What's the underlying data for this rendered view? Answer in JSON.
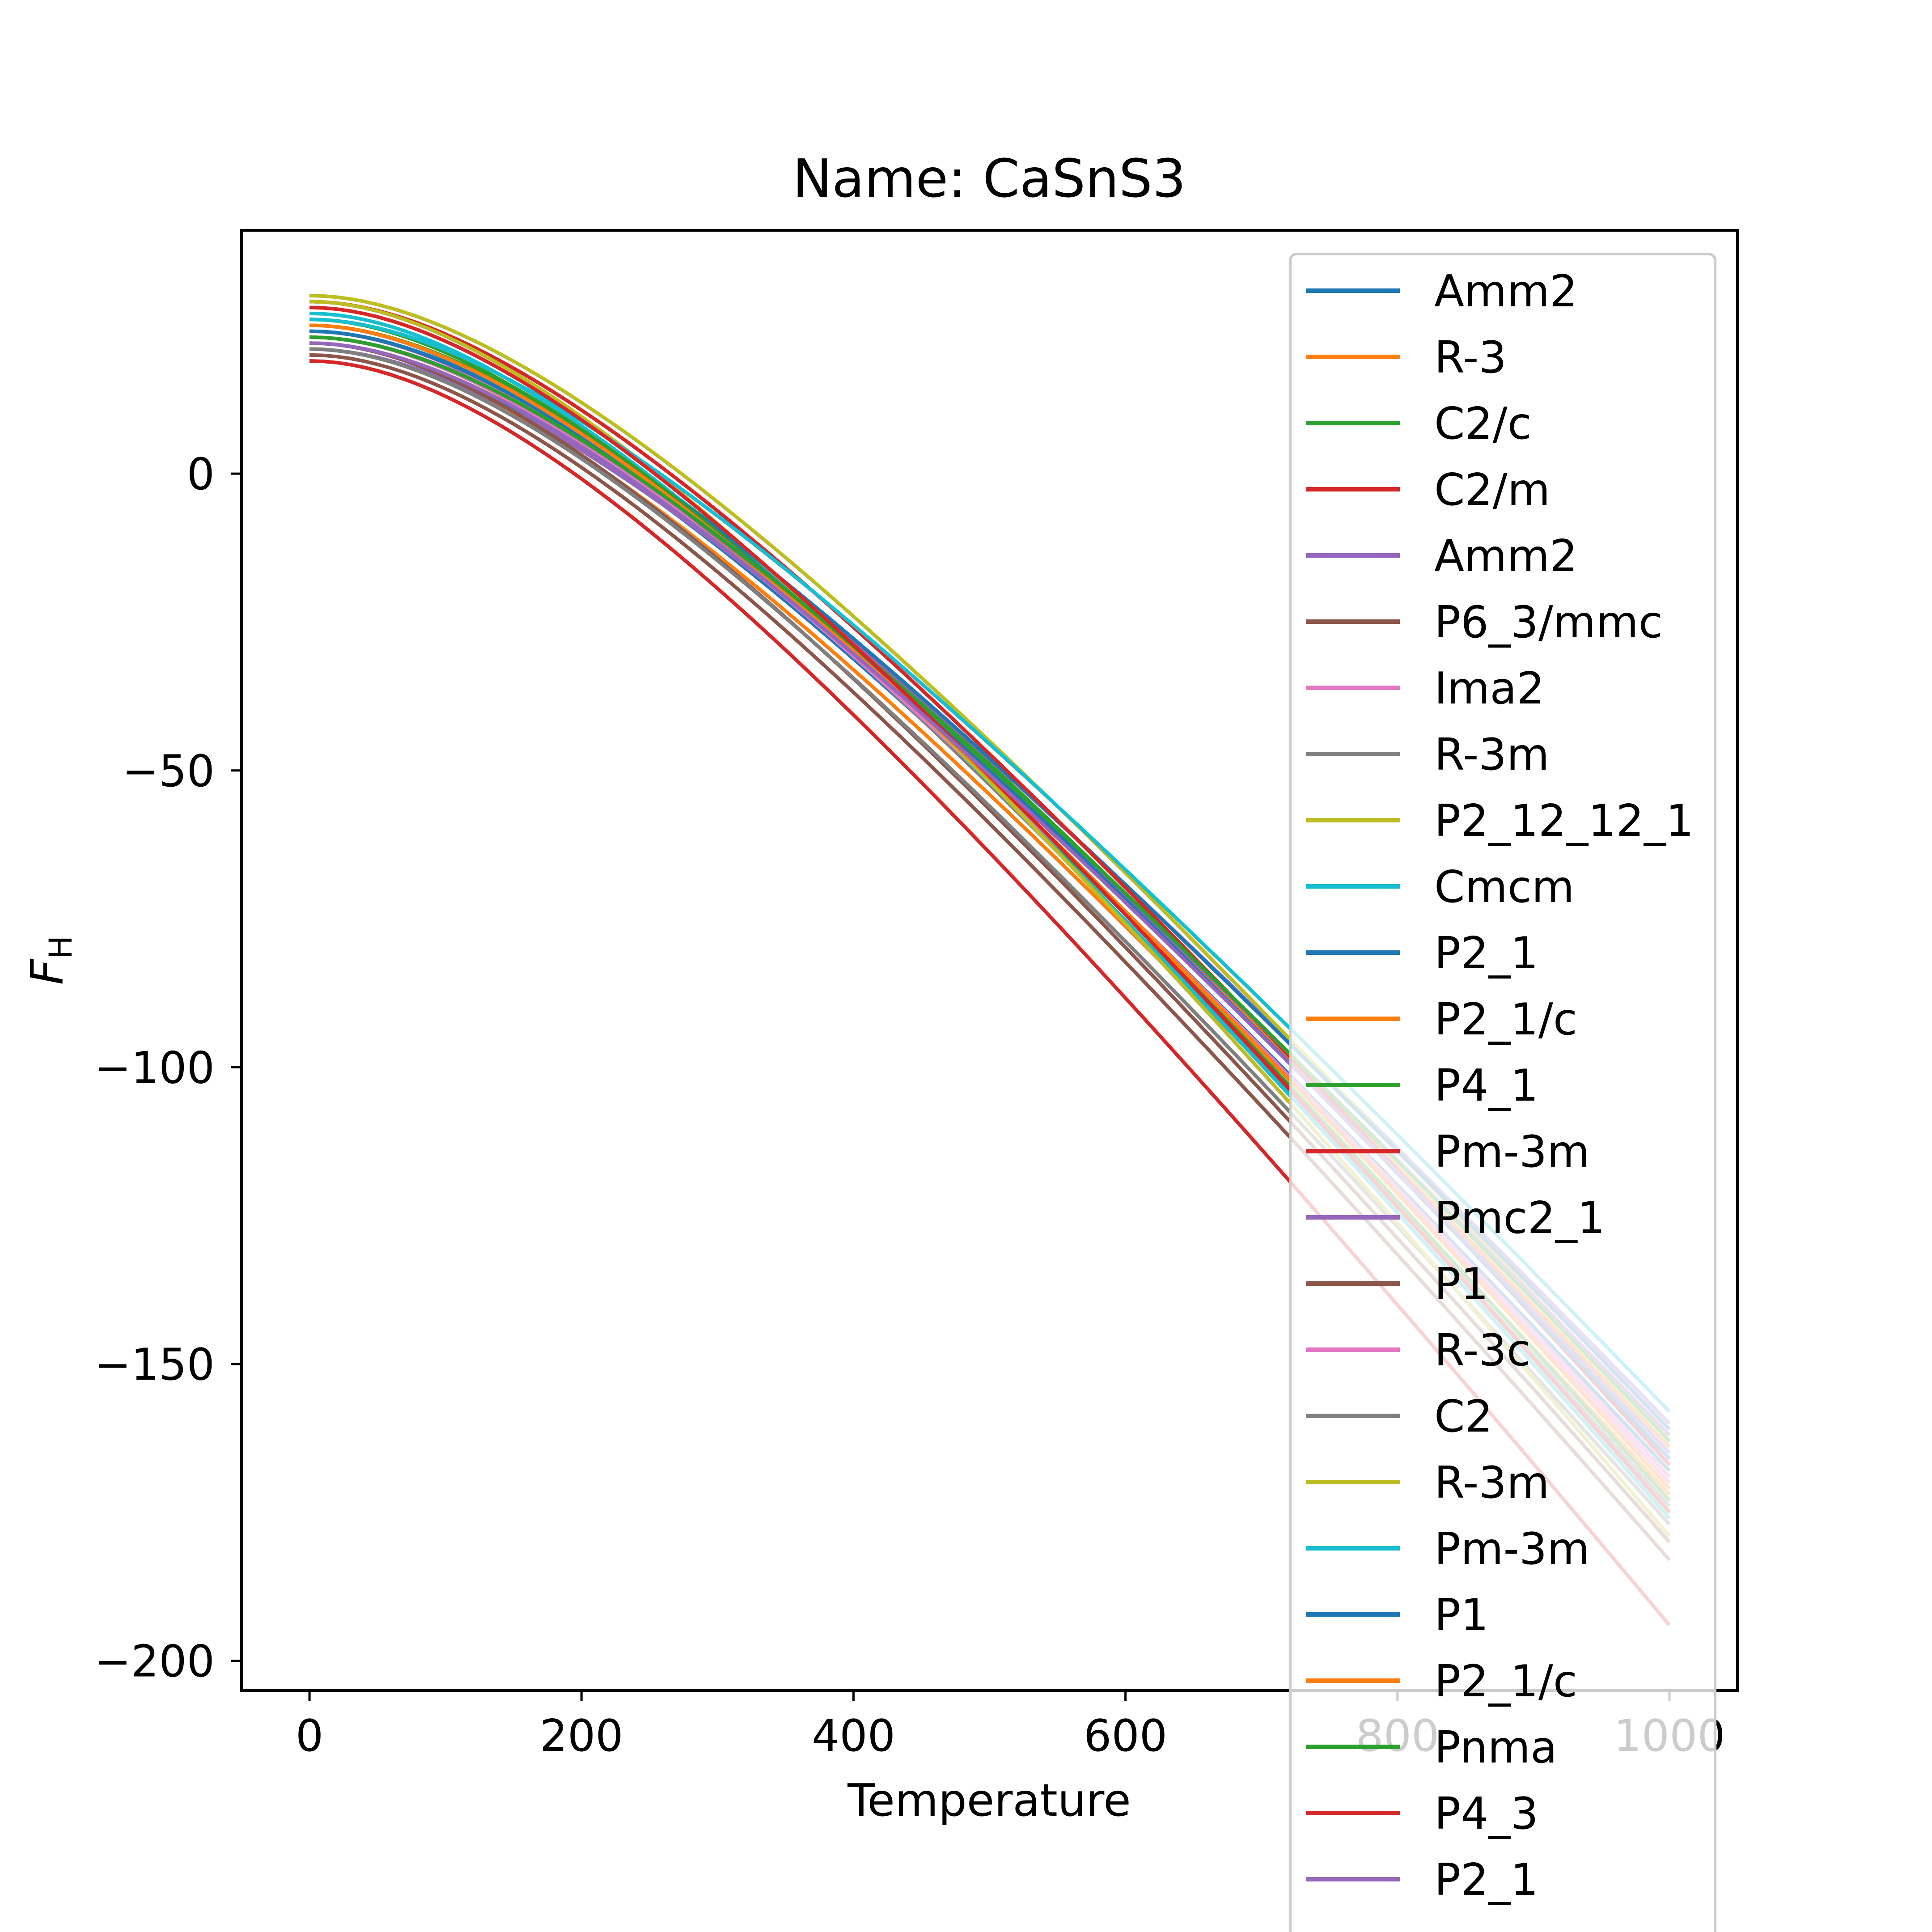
{
  "chart_data": {
    "type": "line",
    "title": "Name: CaSnS3",
    "xlabel": "Temperature",
    "ylabel": "F",
    "ylabel_subscript": "H",
    "xlim": [
      -50,
      1050
    ],
    "ylim": [
      -205,
      41
    ],
    "xticks": [
      0,
      200,
      400,
      600,
      800,
      1000
    ],
    "xtick_labels": [
      "0",
      "200",
      "400",
      "600",
      "800",
      "1000"
    ],
    "yticks": [
      0,
      -50,
      -100,
      -150,
      -200
    ],
    "ytick_labels": [
      "0",
      "−50",
      "−100",
      "−150",
      "−200"
    ],
    "grid": false,
    "legend_position": "upper-right",
    "x_sample": [
      0,
      100,
      200,
      300,
      400,
      500,
      600,
      700,
      800,
      900,
      1000
    ],
    "series": [
      {
        "name": "Amm2",
        "color": "#1f77b4",
        "y0": 22,
        "y1000": -168
      },
      {
        "name": "R-3",
        "color": "#ff7f0e",
        "y0": 21,
        "y1000": -172
      },
      {
        "name": "C2/c",
        "color": "#2ca02c",
        "y0": 25,
        "y1000": -165
      },
      {
        "name": "C2/m",
        "color": "#d62728",
        "y0": 19,
        "y1000": -194
      },
      {
        "name": "Amm2",
        "color": "#9467bd",
        "y0": 23,
        "y1000": -160
      },
      {
        "name": "P6_3/mmc",
        "color": "#8c564b",
        "y0": 20,
        "y1000": -183
      },
      {
        "name": "Ima2",
        "color": "#e377c2",
        "y0": 24,
        "y1000": -170
      },
      {
        "name": "R-3m",
        "color": "#7f7f7f",
        "y0": 25,
        "y1000": -174
      },
      {
        "name": "P2_12_12_1",
        "color": "#bcbd22",
        "y0": 30,
        "y1000": -163
      },
      {
        "name": "Cmcm",
        "color": "#17becf",
        "y0": 27,
        "y1000": -176
      },
      {
        "name": "P2_1",
        "color": "#1f77b4",
        "y0": 24,
        "y1000": -161
      },
      {
        "name": "P2_1/c",
        "color": "#ff7f0e",
        "y0": 22,
        "y1000": -164
      },
      {
        "name": "P4_1",
        "color": "#2ca02c",
        "y0": 26,
        "y1000": -173
      },
      {
        "name": "Pm-3m",
        "color": "#d62728",
        "y0": 29,
        "y1000": -167
      },
      {
        "name": "Pmc2_1",
        "color": "#9467bd",
        "y0": 21,
        "y1000": -162
      },
      {
        "name": "P1",
        "color": "#8c564b",
        "y0": 22,
        "y1000": -180
      },
      {
        "name": "R-3c",
        "color": "#e377c2",
        "y0": 23,
        "y1000": -169
      },
      {
        "name": "C2",
        "color": "#7f7f7f",
        "y0": 21,
        "y1000": -177
      },
      {
        "name": "R-3m",
        "color": "#bcbd22",
        "y0": 29,
        "y1000": -179
      },
      {
        "name": "Pm-3m",
        "color": "#17becf",
        "y0": 26,
        "y1000": -158
      },
      {
        "name": "P1",
        "color": "#1f77b4",
        "y0": 24,
        "y1000": -166
      },
      {
        "name": "P2_1/c",
        "color": "#ff7f0e",
        "y0": 25,
        "y1000": -171
      },
      {
        "name": "Pnma",
        "color": "#2ca02c",
        "y0": 23,
        "y1000": -163
      },
      {
        "name": "P4_3",
        "color": "#d62728",
        "y0": 28,
        "y1000": -175
      },
      {
        "name": "P2_1",
        "color": "#9467bd",
        "y0": 22,
        "y1000": -165
      }
    ]
  }
}
